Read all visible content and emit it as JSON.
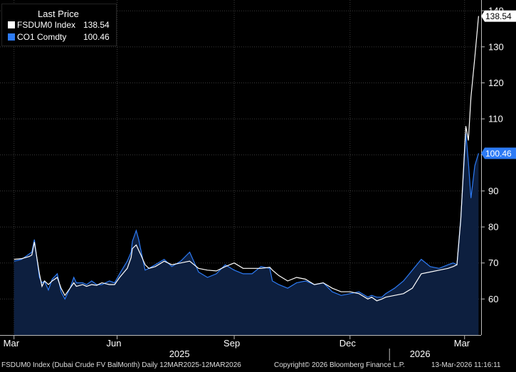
{
  "legend": {
    "title": "Last Price",
    "items": [
      {
        "label": "FSDUM0 Index",
        "value": "138.54",
        "color": "#ffffff"
      },
      {
        "label": "CO1 Comdty",
        "value": "100.46",
        "color": "#2d7bf5"
      }
    ]
  },
  "footer": {
    "left": "FSDUM0 Index (Dubai Crude FV BalMonth) Daily 12MAR2025-12MAR2026",
    "middle": "Copyright© 2026 Bloomberg Finance L.P.",
    "right": "13-Mar-2026 11:16:11"
  },
  "colors": {
    "background": "#000000",
    "grid": "#3a3a3a",
    "area": "#0d1f3f",
    "brent": "#2d7bf5",
    "dubai": "#ffffff"
  },
  "chart_data": {
    "type": "line",
    "y_axis_side": "right",
    "ylim": [
      50,
      143
    ],
    "yticks": [
      60,
      70,
      80,
      90,
      100,
      110,
      120,
      130,
      140
    ],
    "xlim": [
      "2025-03-01",
      "2026-03-14"
    ],
    "month_ticks": [
      {
        "label": "Mar",
        "date": "2025-03-12"
      },
      {
        "label": "Jun",
        "date": "2025-06-01"
      },
      {
        "label": "Sep",
        "date": "2025-09-01"
      },
      {
        "label": "Dec",
        "date": "2025-12-01"
      },
      {
        "label": "Mar",
        "date": "2026-03-01"
      }
    ],
    "year_labels": [
      {
        "label": "2025",
        "date": "2025-07-20"
      },
      {
        "label": "2026",
        "date": "2026-01-25"
      }
    ],
    "year_divider_date": "2026-01-01",
    "last_value_labels": [
      "138.54",
      "100.46"
    ],
    "series": [
      {
        "name": "FSDUM0 Index",
        "color": "#ffffff",
        "dates": [
          "2025-03-12",
          "2025-03-18",
          "2025-03-24",
          "2025-03-26",
          "2025-03-28",
          "2025-04-01",
          "2025-04-03",
          "2025-04-05",
          "2025-04-08",
          "2025-04-11",
          "2025-04-15",
          "2025-04-18",
          "2025-04-21",
          "2025-04-25",
          "2025-04-28",
          "2025-04-30",
          "2025-05-05",
          "2025-05-08",
          "2025-05-12",
          "2025-05-16",
          "2025-05-20",
          "2025-05-26",
          "2025-05-30",
          "2025-06-03",
          "2025-06-09",
          "2025-06-12",
          "2025-06-13",
          "2025-06-16",
          "2025-06-18",
          "2025-06-20",
          "2025-06-23",
          "2025-06-26",
          "2025-07-01",
          "2025-07-08",
          "2025-07-14",
          "2025-07-21",
          "2025-07-28",
          "2025-08-04",
          "2025-08-11",
          "2025-08-18",
          "2025-08-25",
          "2025-09-01",
          "2025-09-08",
          "2025-09-15",
          "2025-09-22",
          "2025-09-29",
          "2025-10-01",
          "2025-10-06",
          "2025-10-13",
          "2025-10-20",
          "2025-10-27",
          "2025-11-03",
          "2025-11-10",
          "2025-11-17",
          "2025-11-24",
          "2025-12-01",
          "2025-12-08",
          "2025-12-15",
          "2025-12-18",
          "2025-12-22",
          "2025-12-26",
          "2025-12-29",
          "2026-01-05",
          "2026-01-12",
          "2026-01-19",
          "2026-01-26",
          "2026-02-02",
          "2026-02-09",
          "2026-02-16",
          "2026-02-20",
          "2026-02-23",
          "2026-02-26",
          "2026-03-02",
          "2026-03-04",
          "2026-03-06",
          "2026-03-09",
          "2026-03-12"
        ],
        "values": [
          71.0,
          71.2,
          71.8,
          72.2,
          75.8,
          67.0,
          63.5,
          65.0,
          64.0,
          65.0,
          66.0,
          63.0,
          61.0,
          63.0,
          64.5,
          63.5,
          64.0,
          63.5,
          64.0,
          63.8,
          64.5,
          64.0,
          64.0,
          66.0,
          68.5,
          71.5,
          74.0,
          75.0,
          73.5,
          72.0,
          69.5,
          68.5,
          69.0,
          70.5,
          69.5,
          70.0,
          70.5,
          68.5,
          68.0,
          67.8,
          69.0,
          70.0,
          68.5,
          68.5,
          68.5,
          68.8,
          68.0,
          66.5,
          65.0,
          66.0,
          65.5,
          64.0,
          64.5,
          63.0,
          62.0,
          62.0,
          61.5,
          60.0,
          60.5,
          59.5,
          60.0,
          60.5,
          61.0,
          61.5,
          63.0,
          67.0,
          67.5,
          68.0,
          68.5,
          69.0,
          69.5,
          82.0,
          108.0,
          104.0,
          116.0,
          127.0,
          138.54
        ]
      },
      {
        "name": "CO1 Comdty",
        "color": "#2d7bf5",
        "dates": [
          "2025-03-12",
          "2025-03-18",
          "2025-03-24",
          "2025-03-26",
          "2025-03-28",
          "2025-04-01",
          "2025-04-03",
          "2025-04-05",
          "2025-04-08",
          "2025-04-11",
          "2025-04-15",
          "2025-04-18",
          "2025-04-21",
          "2025-04-25",
          "2025-04-28",
          "2025-04-30",
          "2025-05-05",
          "2025-05-08",
          "2025-05-12",
          "2025-05-16",
          "2025-05-20",
          "2025-05-26",
          "2025-05-30",
          "2025-06-03",
          "2025-06-09",
          "2025-06-12",
          "2025-06-13",
          "2025-06-16",
          "2025-06-18",
          "2025-06-20",
          "2025-06-23",
          "2025-06-26",
          "2025-07-01",
          "2025-07-08",
          "2025-07-14",
          "2025-07-21",
          "2025-07-28",
          "2025-08-04",
          "2025-08-11",
          "2025-08-18",
          "2025-08-25",
          "2025-09-01",
          "2025-09-08",
          "2025-09-15",
          "2025-09-22",
          "2025-09-29",
          "2025-10-01",
          "2025-10-06",
          "2025-10-13",
          "2025-10-20",
          "2025-10-27",
          "2025-11-03",
          "2025-11-10",
          "2025-11-17",
          "2025-11-24",
          "2025-12-01",
          "2025-12-08",
          "2025-12-15",
          "2025-12-18",
          "2025-12-22",
          "2025-12-26",
          "2025-12-29",
          "2026-01-05",
          "2026-01-12",
          "2026-01-19",
          "2026-01-26",
          "2026-02-02",
          "2026-02-09",
          "2026-02-16",
          "2026-02-20",
          "2026-02-23",
          "2026-02-26",
          "2026-03-02",
          "2026-03-04",
          "2026-03-06",
          "2026-03-09",
          "2026-03-12"
        ],
        "values": [
          70.5,
          71.0,
          72.5,
          73.0,
          76.5,
          66.0,
          64.5,
          65.0,
          62.5,
          65.5,
          67.0,
          62.0,
          60.0,
          63.0,
          66.0,
          64.5,
          64.5,
          64.0,
          65.0,
          64.0,
          64.0,
          65.0,
          64.5,
          67.0,
          70.5,
          73.0,
          76.0,
          79.0,
          76.5,
          73.0,
          68.0,
          68.5,
          69.5,
          71.0,
          69.0,
          70.5,
          73.0,
          67.5,
          66.0,
          67.0,
          69.5,
          68.0,
          67.0,
          67.0,
          69.0,
          68.5,
          65.0,
          64.0,
          63.0,
          64.5,
          65.0,
          64.0,
          64.5,
          62.0,
          61.0,
          61.5,
          62.0,
          60.5,
          61.0,
          60.5,
          60.5,
          61.5,
          63.0,
          65.0,
          68.0,
          71.0,
          69.0,
          68.5,
          69.5,
          70.0,
          69.5,
          82.5,
          106.0,
          98.0,
          88.0,
          97.0,
          100.46
        ]
      }
    ]
  }
}
